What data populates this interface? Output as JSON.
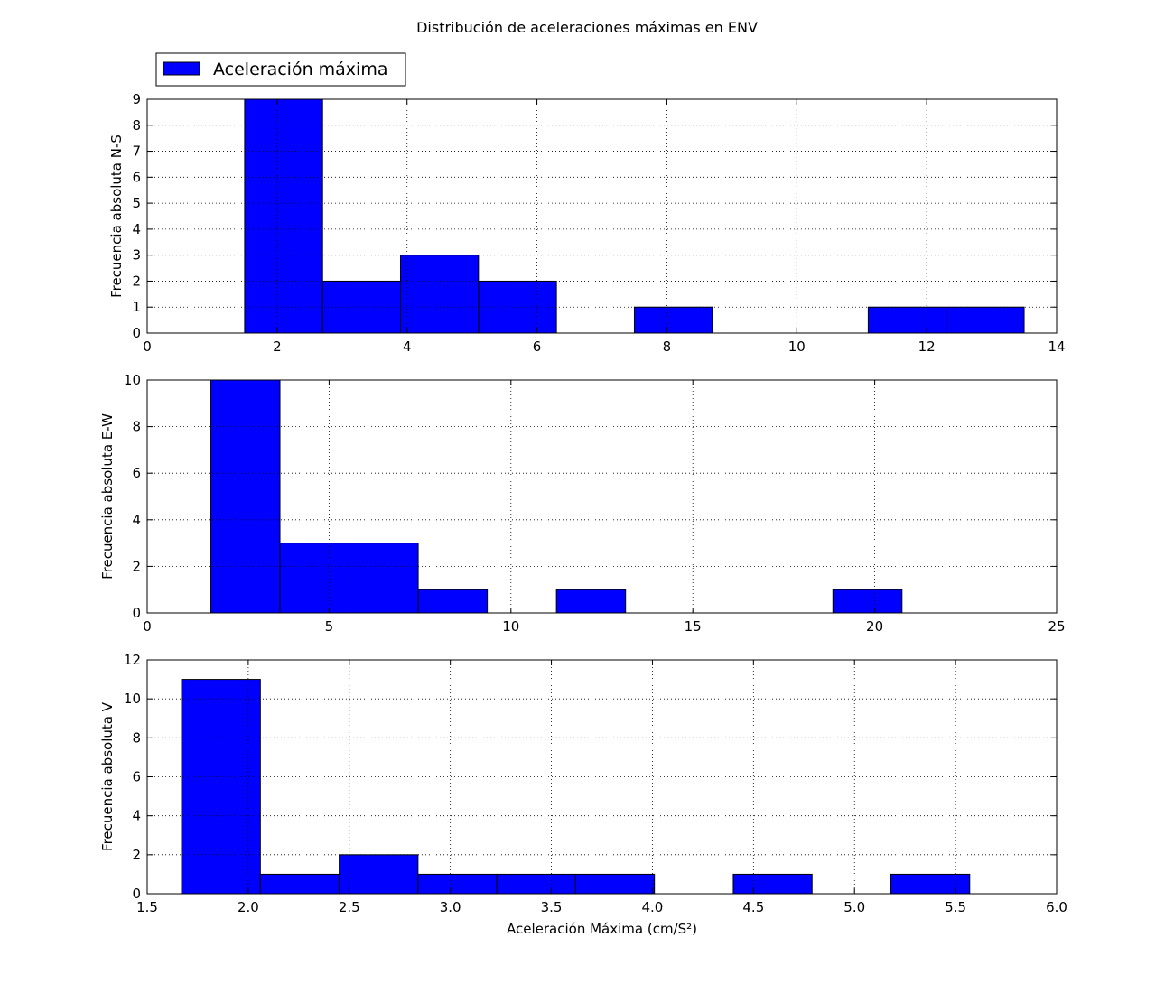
{
  "chart_data": {
    "title": "Distribución de aceleraciones máximas en ENV",
    "legend": {
      "label": "Aceleración máxima",
      "placement": "top-left (above first subplot)",
      "color": "#0000ff"
    },
    "bar_color": "#0000ff",
    "grid": true,
    "subplots": [
      {
        "type": "bar",
        "ylabel": "Frecuencia absoluta N-S",
        "xlabel": "",
        "xlim": [
          0,
          14
        ],
        "ylim": [
          0,
          9
        ],
        "xticks": [
          "0",
          "2",
          "4",
          "6",
          "8",
          "10",
          "12",
          "14"
        ],
        "xtick_values": [
          0,
          2,
          4,
          6,
          8,
          10,
          12,
          14
        ],
        "yticks": [
          "0",
          "1",
          "2",
          "3",
          "4",
          "5",
          "6",
          "7",
          "8",
          "9"
        ],
        "ytick_values": [
          0,
          1,
          2,
          3,
          4,
          5,
          6,
          7,
          8,
          9
        ],
        "bins": [
          {
            "start": 1.5,
            "end": 2.7,
            "count": 9
          },
          {
            "start": 2.7,
            "end": 3.9,
            "count": 2
          },
          {
            "start": 3.9,
            "end": 5.1,
            "count": 3
          },
          {
            "start": 5.1,
            "end": 6.3,
            "count": 2
          },
          {
            "start": 6.3,
            "end": 7.5,
            "count": 0
          },
          {
            "start": 7.5,
            "end": 8.7,
            "count": 1
          },
          {
            "start": 8.7,
            "end": 9.9,
            "count": 0
          },
          {
            "start": 9.9,
            "end": 11.1,
            "count": 0
          },
          {
            "start": 11.1,
            "end": 12.3,
            "count": 1
          },
          {
            "start": 12.3,
            "end": 13.5,
            "count": 1
          }
        ]
      },
      {
        "type": "bar",
        "ylabel": "Frecuencia absoluta E-W",
        "xlabel": "",
        "xlim": [
          0,
          25
        ],
        "ylim": [
          0,
          10
        ],
        "xticks": [
          "0",
          "5",
          "10",
          "15",
          "20",
          "25"
        ],
        "xtick_values": [
          0,
          5,
          10,
          15,
          20,
          25
        ],
        "yticks": [
          "0",
          "2",
          "4",
          "6",
          "8",
          "10"
        ],
        "ytick_values": [
          0,
          2,
          4,
          6,
          8,
          10
        ],
        "bins": [
          {
            "start": 1.75,
            "end": 3.65,
            "count": 10
          },
          {
            "start": 3.65,
            "end": 5.55,
            "count": 3
          },
          {
            "start": 5.55,
            "end": 7.45,
            "count": 3
          },
          {
            "start": 7.45,
            "end": 9.35,
            "count": 1
          },
          {
            "start": 9.35,
            "end": 11.25,
            "count": 0
          },
          {
            "start": 11.25,
            "end": 13.15,
            "count": 1
          },
          {
            "start": 13.15,
            "end": 15.05,
            "count": 0
          },
          {
            "start": 15.05,
            "end": 16.95,
            "count": 0
          },
          {
            "start": 16.95,
            "end": 18.85,
            "count": 0
          },
          {
            "start": 18.85,
            "end": 20.75,
            "count": 1
          }
        ]
      },
      {
        "type": "bar",
        "ylabel": "Frecuencia absoluta V",
        "xlabel": "Aceleración Máxima (cm/S²)",
        "xlim": [
          1.5,
          6.0
        ],
        "ylim": [
          0,
          12
        ],
        "xticks": [
          "1.5",
          "2.0",
          "2.5",
          "3.0",
          "3.5",
          "4.0",
          "4.5",
          "5.0",
          "5.5",
          "6.0"
        ],
        "xtick_values": [
          1.5,
          2.0,
          2.5,
          3.0,
          3.5,
          4.0,
          4.5,
          5.0,
          5.5,
          6.0
        ],
        "yticks": [
          "0",
          "2",
          "4",
          "6",
          "8",
          "10",
          "12"
        ],
        "ytick_values": [
          0,
          2,
          4,
          6,
          8,
          10,
          12
        ],
        "bins": [
          {
            "start": 1.67,
            "end": 2.06,
            "count": 11
          },
          {
            "start": 2.06,
            "end": 2.45,
            "count": 1
          },
          {
            "start": 2.45,
            "end": 2.84,
            "count": 2
          },
          {
            "start": 2.84,
            "end": 3.23,
            "count": 1
          },
          {
            "start": 3.23,
            "end": 3.62,
            "count": 1
          },
          {
            "start": 3.62,
            "end": 4.01,
            "count": 1
          },
          {
            "start": 4.01,
            "end": 4.4,
            "count": 0
          },
          {
            "start": 4.4,
            "end": 4.79,
            "count": 1
          },
          {
            "start": 4.79,
            "end": 5.18,
            "count": 0
          },
          {
            "start": 5.18,
            "end": 5.57,
            "count": 1
          }
        ]
      }
    ]
  }
}
